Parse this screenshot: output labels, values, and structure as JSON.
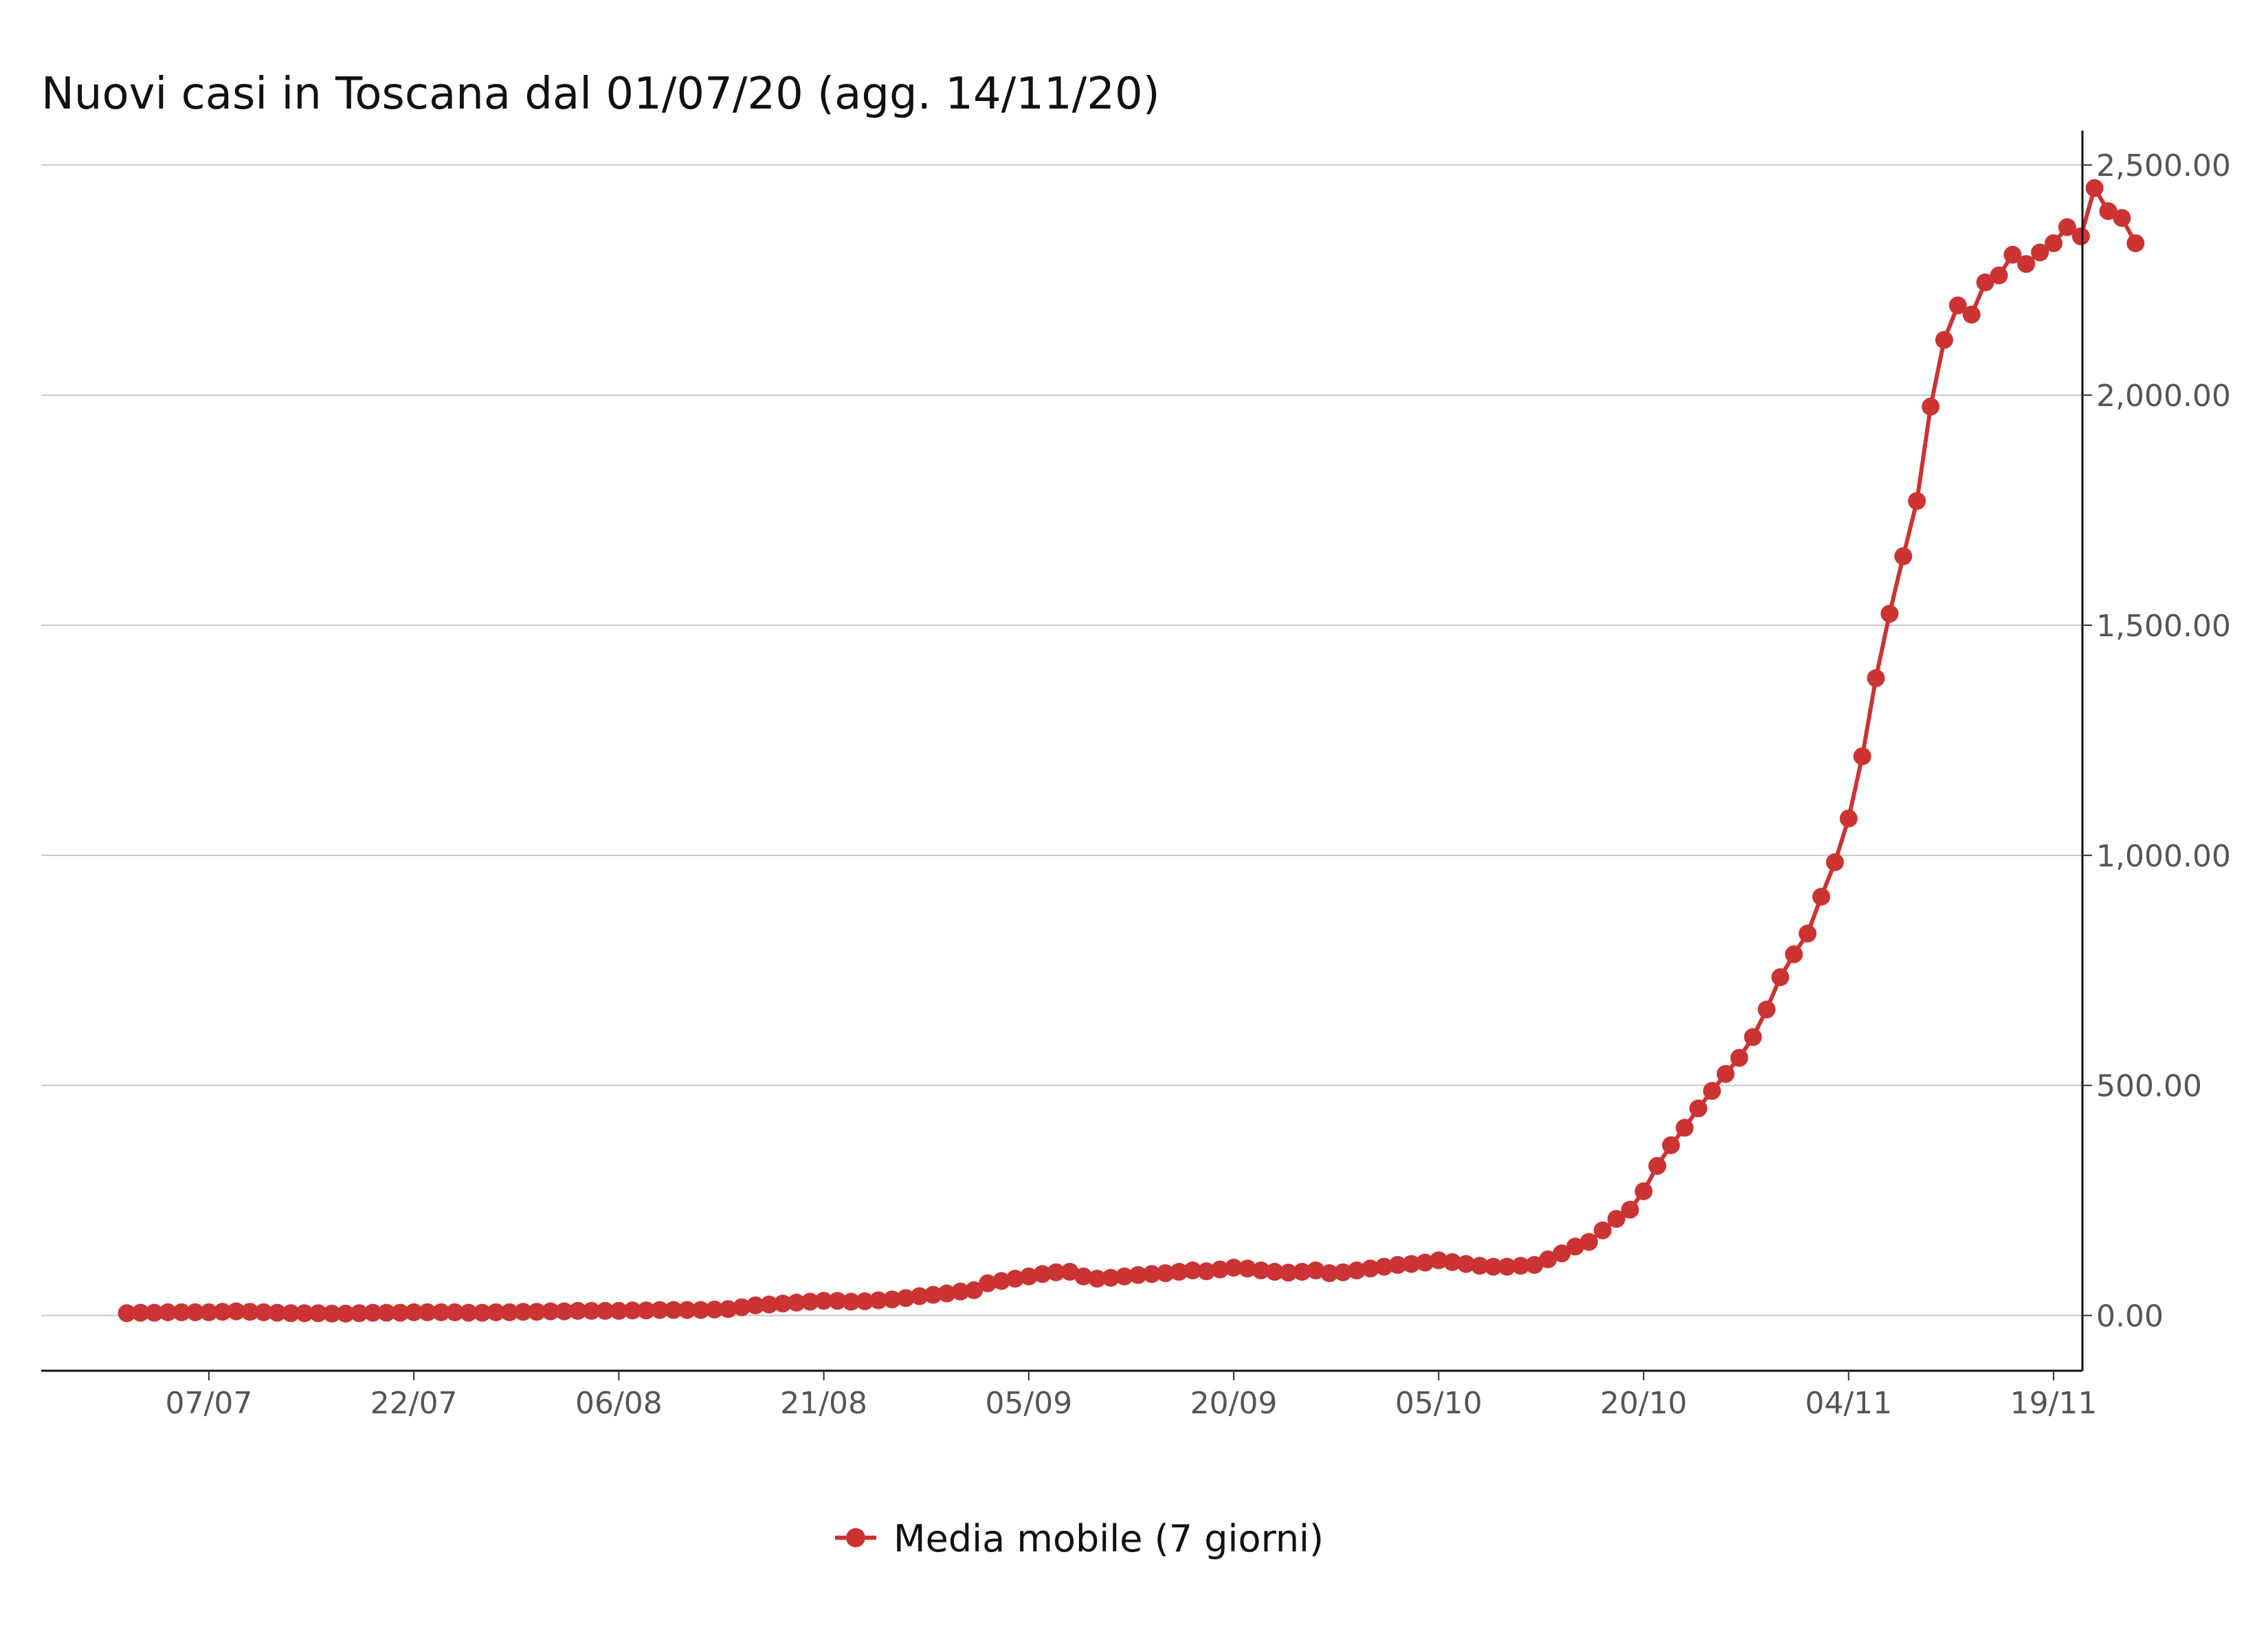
{
  "chart_data": {
    "type": "line",
    "title": "Nuovi casi in Toscana dal 01/07/20 (agg. 14/11/20)",
    "xlabel": "",
    "ylabel": "",
    "x_start": "2020-07-01",
    "x_ticks": [
      "07/07",
      "22/07",
      "06/08",
      "21/08",
      "05/09",
      "20/09",
      "05/10",
      "20/10",
      "04/11",
      "19/11"
    ],
    "xlim": [
      "2020-06-28",
      "2020-11-19"
    ],
    "ylim": [
      -120,
      2560
    ],
    "y_ticks": [
      0,
      500,
      1000,
      1500,
      2000,
      2500
    ],
    "y_tick_labels": [
      "0.00",
      "500.00",
      "1,000.00",
      "1,500.00",
      "2,000.00",
      "2,500.00"
    ],
    "y_axis_position": "right",
    "grid": "horizontal",
    "legend_position": "bottom",
    "series": [
      {
        "name": "Media mobile (7 giorni)",
        "color": "#cc3333",
        "values": [
          5,
          6,
          6,
          7,
          7,
          7,
          7,
          8,
          9,
          8,
          7,
          6,
          5,
          5,
          5,
          4,
          4,
          5,
          6,
          6,
          6,
          7,
          7,
          7,
          7,
          6,
          6,
          7,
          7,
          8,
          8,
          9,
          9,
          10,
          10,
          10,
          10,
          11,
          11,
          12,
          12,
          12,
          12,
          13,
          14,
          18,
          22,
          24,
          26,
          28,
          30,
          32,
          32,
          30,
          31,
          33,
          35,
          38,
          42,
          45,
          48,
          52,
          55,
          70,
          75,
          80,
          85,
          90,
          94,
          95,
          85,
          80,
          82,
          85,
          88,
          90,
          92,
          95,
          98,
          96,
          100,
          104,
          102,
          98,
          95,
          93,
          95,
          98,
          92,
          94,
          98,
          102,
          106,
          110,
          112,
          115,
          120,
          116,
          112,
          108,
          106,
          106,
          108,
          110,
          122,
          135,
          150,
          160,
          185,
          210,
          230,
          270,
          325,
          370,
          408,
          450,
          488,
          525,
          560,
          605,
          665,
          735,
          785,
          830,
          910,
          985,
          1080,
          1215,
          1385,
          1525,
          1650,
          1770,
          1975,
          2120,
          2195,
          2175,
          2245,
          2260,
          2305,
          2285,
          2310,
          2330,
          2365,
          2345,
          2450,
          2400,
          2385,
          2330
        ]
      }
    ]
  }
}
